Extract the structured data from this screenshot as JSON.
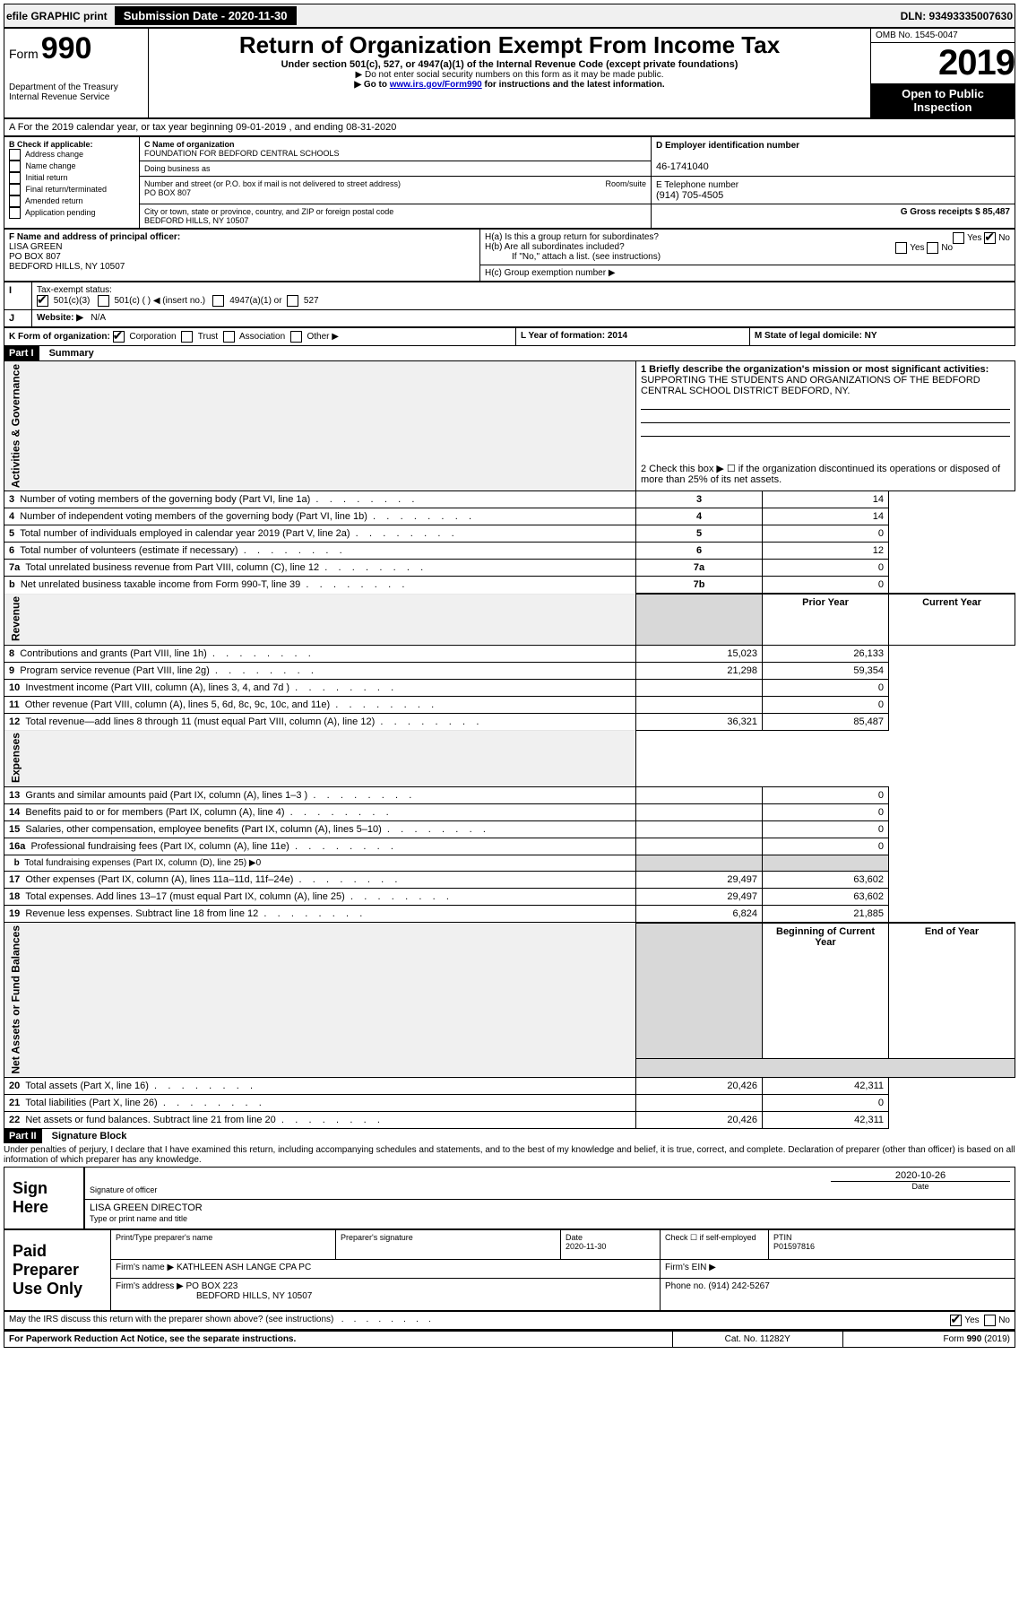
{
  "topbar": {
    "efile": "efile GRAPHIC print",
    "submission_label": "Submission Date - 2020-11-30",
    "dln": "DLN: 93493335007630"
  },
  "header": {
    "form_prefix": "Form",
    "form_number": "990",
    "title": "Return of Organization Exempt From Income Tax",
    "subtitle": "Under section 501(c), 527, or 4947(a)(1) of the Internal Revenue Code (except private foundations)",
    "note1": "▶ Do not enter social security numbers on this form as it may be made public.",
    "note2_pre": "▶ Go to ",
    "note2_link": "www.irs.gov/Form990",
    "note2_post": " for instructions and the latest information.",
    "dept": "Department of the Treasury\nInternal Revenue Service",
    "omb": "OMB No. 1545-0047",
    "year": "2019",
    "open": "Open to Public Inspection"
  },
  "lineA": "A For the 2019 calendar year, or tax year beginning 09-01-2019    , and ending 08-31-2020",
  "boxB": {
    "label": "B Check if applicable:",
    "items": [
      "Address change",
      "Name change",
      "Initial return",
      "Final return/terminated",
      "Amended return",
      "Application pending"
    ]
  },
  "boxC": {
    "name_label": "C Name of organization",
    "name": "FOUNDATION FOR BEDFORD CENTRAL SCHOOLS",
    "dba_label": "Doing business as",
    "dba": "",
    "addr_label": "Number and street (or P.O. box if mail is not delivered to street address)",
    "room_label": "Room/suite",
    "addr": "PO BOX 807",
    "city_label": "City or town, state or province, country, and ZIP or foreign postal code",
    "city": "BEDFORD HILLS, NY  10507"
  },
  "boxD": {
    "label": "D Employer identification number",
    "value": "46-1741040"
  },
  "boxE": {
    "label": "E Telephone number",
    "value": "(914) 705-4505"
  },
  "boxG": {
    "label": "G Gross receipts $ 85,487"
  },
  "boxF": {
    "label": "F Name and address of principal officer:",
    "line1": "LISA GREEN",
    "line2": "PO BOX 807",
    "line3": "BEDFORD HILLS, NY  10507"
  },
  "boxH": {
    "a_label": "H(a)  Is this a group return for subordinates?",
    "b_label": "H(b)  Are all subordinates included?",
    "note": "If \"No,\" attach a list. (see instructions)",
    "c_label": "H(c)  Group exemption number ▶"
  },
  "boxI": {
    "label": "I",
    "text": "Tax-exempt status:",
    "opt1": "501(c)(3)",
    "opt2": "501(c) (  ) ◀ (insert no.)",
    "opt3": "4947(a)(1) or",
    "opt4": "527"
  },
  "boxJ": {
    "label": "J",
    "text": "Website: ▶",
    "value": "N/A"
  },
  "boxK": {
    "label": "K Form of organization:",
    "opts": [
      "Corporation",
      "Trust",
      "Association",
      "Other ▶"
    ]
  },
  "boxL": {
    "label": "L Year of formation: 2014"
  },
  "boxM": {
    "label": "M State of legal domicile: NY"
  },
  "parts": {
    "p1_header": "Part I",
    "p1_title": "Summary",
    "p2_header": "Part II",
    "p2_title": "Signature Block"
  },
  "p1": {
    "line1_label": "1  Briefly describe the organization's mission or most significant activities:",
    "line1_text": "SUPPORTING THE STUDENTS AND ORGANIZATIONS OF THE BEDFORD CENTRAL SCHOOL DISTRICT BEDFORD, NY.",
    "line2": "2   Check this box ▶ ☐  if the organization discontinued its operations or disposed of more than 25% of its net assets.",
    "rows_gov": [
      {
        "n": "3",
        "d": "Number of voting members of the governing body (Part VI, line 1a)",
        "k": "3",
        "v": "14"
      },
      {
        "n": "4",
        "d": "Number of independent voting members of the governing body (Part VI, line 1b)",
        "k": "4",
        "v": "14"
      },
      {
        "n": "5",
        "d": "Total number of individuals employed in calendar year 2019 (Part V, line 2a)",
        "k": "5",
        "v": "0"
      },
      {
        "n": "6",
        "d": "Total number of volunteers (estimate if necessary)",
        "k": "6",
        "v": "12"
      },
      {
        "n": "7a",
        "d": "Total unrelated business revenue from Part VIII, column (C), line 12",
        "k": "7a",
        "v": "0"
      },
      {
        "n": "b",
        "d": "Net unrelated business taxable income from Form 990-T, line 39",
        "k": "7b",
        "v": "0"
      }
    ],
    "col_prior": "Prior Year",
    "col_current": "Current Year",
    "rows_rev": [
      {
        "n": "8",
        "d": "Contributions and grants (Part VIII, line 1h)",
        "p": "15,023",
        "c": "26,133"
      },
      {
        "n": "9",
        "d": "Program service revenue (Part VIII, line 2g)",
        "p": "21,298",
        "c": "59,354"
      },
      {
        "n": "10",
        "d": "Investment income (Part VIII, column (A), lines 3, 4, and 7d )",
        "p": "",
        "c": "0"
      },
      {
        "n": "11",
        "d": "Other revenue (Part VIII, column (A), lines 5, 6d, 8c, 9c, 10c, and 11e)",
        "p": "",
        "c": "0"
      },
      {
        "n": "12",
        "d": "Total revenue—add lines 8 through 11 (must equal Part VIII, column (A), line 12)",
        "p": "36,321",
        "c": "85,487"
      }
    ],
    "rows_exp": [
      {
        "n": "13",
        "d": "Grants and similar amounts paid (Part IX, column (A), lines 1–3 )",
        "p": "",
        "c": "0"
      },
      {
        "n": "14",
        "d": "Benefits paid to or for members (Part IX, column (A), line 4)",
        "p": "",
        "c": "0"
      },
      {
        "n": "15",
        "d": "Salaries, other compensation, employee benefits (Part IX, column (A), lines 5–10)",
        "p": "",
        "c": "0"
      },
      {
        "n": "16a",
        "d": "Professional fundraising fees (Part IX, column (A), line 11e)",
        "p": "",
        "c": "0"
      },
      {
        "n": "b",
        "d": "Total fundraising expenses (Part IX, column (D), line 25) ▶0",
        "p": null,
        "c": null
      },
      {
        "n": "17",
        "d": "Other expenses (Part IX, column (A), lines 11a–11d, 11f–24e)",
        "p": "29,497",
        "c": "63,602"
      },
      {
        "n": "18",
        "d": "Total expenses. Add lines 13–17 (must equal Part IX, column (A), line 25)",
        "p": "29,497",
        "c": "63,602"
      },
      {
        "n": "19",
        "d": "Revenue less expenses. Subtract line 18 from line 12",
        "p": "6,824",
        "c": "21,885"
      }
    ],
    "col_begin": "Beginning of Current Year",
    "col_end": "End of Year",
    "rows_net": [
      {
        "n": "20",
        "d": "Total assets (Part X, line 16)",
        "p": "20,426",
        "c": "42,311"
      },
      {
        "n": "21",
        "d": "Total liabilities (Part X, line 26)",
        "p": "",
        "c": "0"
      },
      {
        "n": "22",
        "d": "Net assets or fund balances. Subtract line 21 from line 20",
        "p": "20,426",
        "c": "42,311"
      }
    ]
  },
  "vlabels": {
    "gov": "Activities & Governance",
    "rev": "Revenue",
    "exp": "Expenses",
    "net": "Net Assets or Fund Balances"
  },
  "p2": {
    "perjury": "Under penalties of perjury, I declare that I have examined this return, including accompanying schedules and statements, and to the best of my knowledge and belief, it is true, correct, and complete. Declaration of preparer (other than officer) is based on all information of which preparer has any knowledge.",
    "sign_here": "Sign Here",
    "sig_officer_label": "Signature of officer",
    "sig_date": "2020-10-26",
    "date_label": "Date",
    "name_title": "LISA GREEN  DIRECTOR",
    "name_title_label": "Type or print name and title",
    "paid": "Paid Preparer Use Only",
    "prep_name_label": "Print/Type preparer's name",
    "prep_sig_label": "Preparer's signature",
    "prep_date_label": "Date",
    "prep_date": "2020-11-30",
    "check_label": "Check ☐ if self-employed",
    "ptin_label": "PTIN",
    "ptin": "P01597816",
    "firm_name_label": "Firm's name    ▶",
    "firm_name": "KATHLEEN ASH LANGE CPA PC",
    "firm_ein_label": "Firm's EIN ▶",
    "firm_addr_label": "Firm's address ▶",
    "firm_addr": "PO BOX 223",
    "firm_city": "BEDFORD HILLS, NY  10507",
    "phone_label": "Phone no. (914) 242-5267",
    "discuss": "May the IRS discuss this return with the preparer shown above? (see instructions)",
    "paperwork": "For Paperwork Reduction Act Notice, see the separate instructions.",
    "cat": "Cat. No. 11282Y",
    "formfoot": "Form 990 (2019)"
  }
}
